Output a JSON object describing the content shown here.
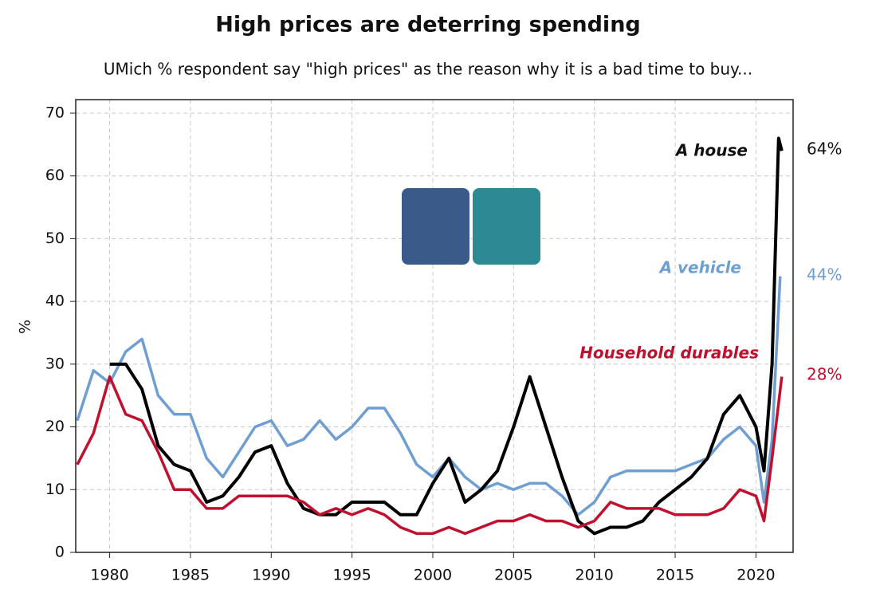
{
  "chart_data": {
    "type": "line",
    "title": "High prices are deterring spending",
    "subtitle": "UMich % respondent say \"high prices\" as the reason why it is a bad time to buy...",
    "y_label": "%",
    "xlim": [
      1977.9,
      2022.3
    ],
    "xticks": [
      1980,
      1985,
      1990,
      1995,
      2000,
      2005,
      2010,
      2015,
      2020
    ],
    "ylim": [
      0,
      70
    ],
    "yticks": [
      0,
      10,
      20,
      30,
      40,
      50,
      60,
      70
    ],
    "grid": true,
    "series": [
      {
        "name": "A vehicle",
        "color": "#6f9fd2",
        "end_label": "44%",
        "x": [
          1978,
          1979,
          1980,
          1981,
          1982,
          1983,
          1984,
          1985,
          1986,
          1987,
          1988,
          1989,
          1990,
          1991,
          1992,
          1993,
          1994,
          1995,
          1996,
          1997,
          1998,
          1999,
          2000,
          2001,
          2002,
          2003,
          2004,
          2005,
          2006,
          2007,
          2008,
          2009,
          2010,
          2011,
          2012,
          2013,
          2014,
          2015,
          2016,
          2017,
          2018,
          2019,
          2020,
          2020.5,
          2021,
          2021.5
        ],
        "values": [
          21,
          29,
          27,
          32,
          34,
          25,
          22,
          22,
          15,
          12,
          16,
          20,
          21,
          17,
          18,
          21,
          18,
          20,
          23,
          23,
          19,
          14,
          12,
          15,
          12,
          10,
          11,
          10,
          11,
          11,
          9,
          6,
          8,
          12,
          13,
          13,
          13,
          13,
          14,
          15,
          18,
          20,
          17,
          8,
          18,
          44
        ]
      },
      {
        "name": "A house",
        "color": "#000000",
        "end_label": "64%",
        "x": [
          1980,
          1981,
          1982,
          1983,
          1984,
          1985,
          1986,
          1987,
          1988,
          1989,
          1990,
          1991,
          1992,
          1993,
          1994,
          1995,
          1996,
          1997,
          1998,
          1999,
          2000,
          2001,
          2002,
          2003,
          2004,
          2005,
          2006,
          2007,
          2008,
          2009,
          2010,
          2011,
          2012,
          2013,
          2014,
          2015,
          2016,
          2017,
          2018,
          2019,
          2020,
          2020.5,
          2021,
          2021.4,
          2021.6
        ],
        "values": [
          30,
          30,
          26,
          17,
          14,
          13,
          8,
          9,
          12,
          16,
          17,
          11,
          7,
          6,
          6,
          8,
          8,
          8,
          6,
          6,
          11,
          15,
          8,
          10,
          13,
          20,
          28,
          20,
          12,
          5,
          3,
          4,
          4,
          5,
          8,
          10,
          12,
          15,
          22,
          25,
          20,
          13,
          30,
          66,
          64
        ]
      },
      {
        "name": "Household durables",
        "color": "#c0102e",
        "end_label": "28%",
        "x": [
          1978,
          1979,
          1980,
          1981,
          1982,
          1983,
          1984,
          1985,
          1986,
          1987,
          1988,
          1989,
          1990,
          1991,
          1992,
          1993,
          1994,
          1995,
          1996,
          1997,
          1998,
          1999,
          2000,
          2001,
          2002,
          2003,
          2004,
          2005,
          2006,
          2007,
          2008,
          2009,
          2010,
          2011,
          2012,
          2013,
          2014,
          2015,
          2016,
          2017,
          2018,
          2019,
          2020,
          2020.5,
          2021,
          2021.6
        ],
        "values": [
          14,
          19,
          28,
          22,
          21,
          16,
          10,
          10,
          7,
          7,
          9,
          9,
          9,
          9,
          8,
          6,
          7,
          6,
          7,
          6,
          4,
          3,
          3,
          4,
          3,
          4,
          5,
          5,
          6,
          5,
          5,
          4,
          5,
          8,
          7,
          7,
          7,
          6,
          6,
          6,
          7,
          10,
          9,
          5,
          15,
          28
        ]
      }
    ]
  }
}
